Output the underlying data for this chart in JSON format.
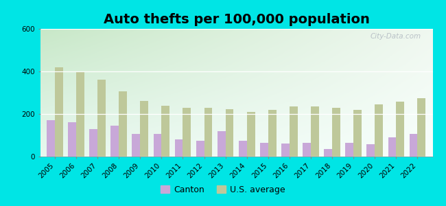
{
  "title": "Auto thefts per 100,000 population",
  "years": [
    2005,
    2006,
    2007,
    2008,
    2009,
    2010,
    2011,
    2012,
    2013,
    2014,
    2015,
    2016,
    2017,
    2018,
    2019,
    2020,
    2021,
    2022
  ],
  "canton": [
    170,
    160,
    130,
    145,
    105,
    105,
    80,
    75,
    120,
    75,
    63,
    62,
    65,
    35,
    65,
    57,
    90,
    105
  ],
  "us_avg": [
    420,
    400,
    360,
    305,
    262,
    240,
    230,
    230,
    222,
    210,
    220,
    235,
    236,
    230,
    220,
    245,
    258,
    273
  ],
  "canton_color": "#c8a8d8",
  "us_avg_color": "#bec89a",
  "outer_bg": "#00e5e5",
  "plot_bg_topleft": "#d8eed8",
  "plot_bg_right": "#eef8f0",
  "plot_bg_top": "#eef8ee",
  "ylim": [
    0,
    600
  ],
  "yticks": [
    0,
    200,
    400,
    600
  ],
  "watermark": "City-Data.com",
  "legend_canton": "Canton",
  "legend_us": "U.S. average",
  "title_fontsize": 14,
  "tick_fontsize": 7.5,
  "bar_width": 0.38
}
